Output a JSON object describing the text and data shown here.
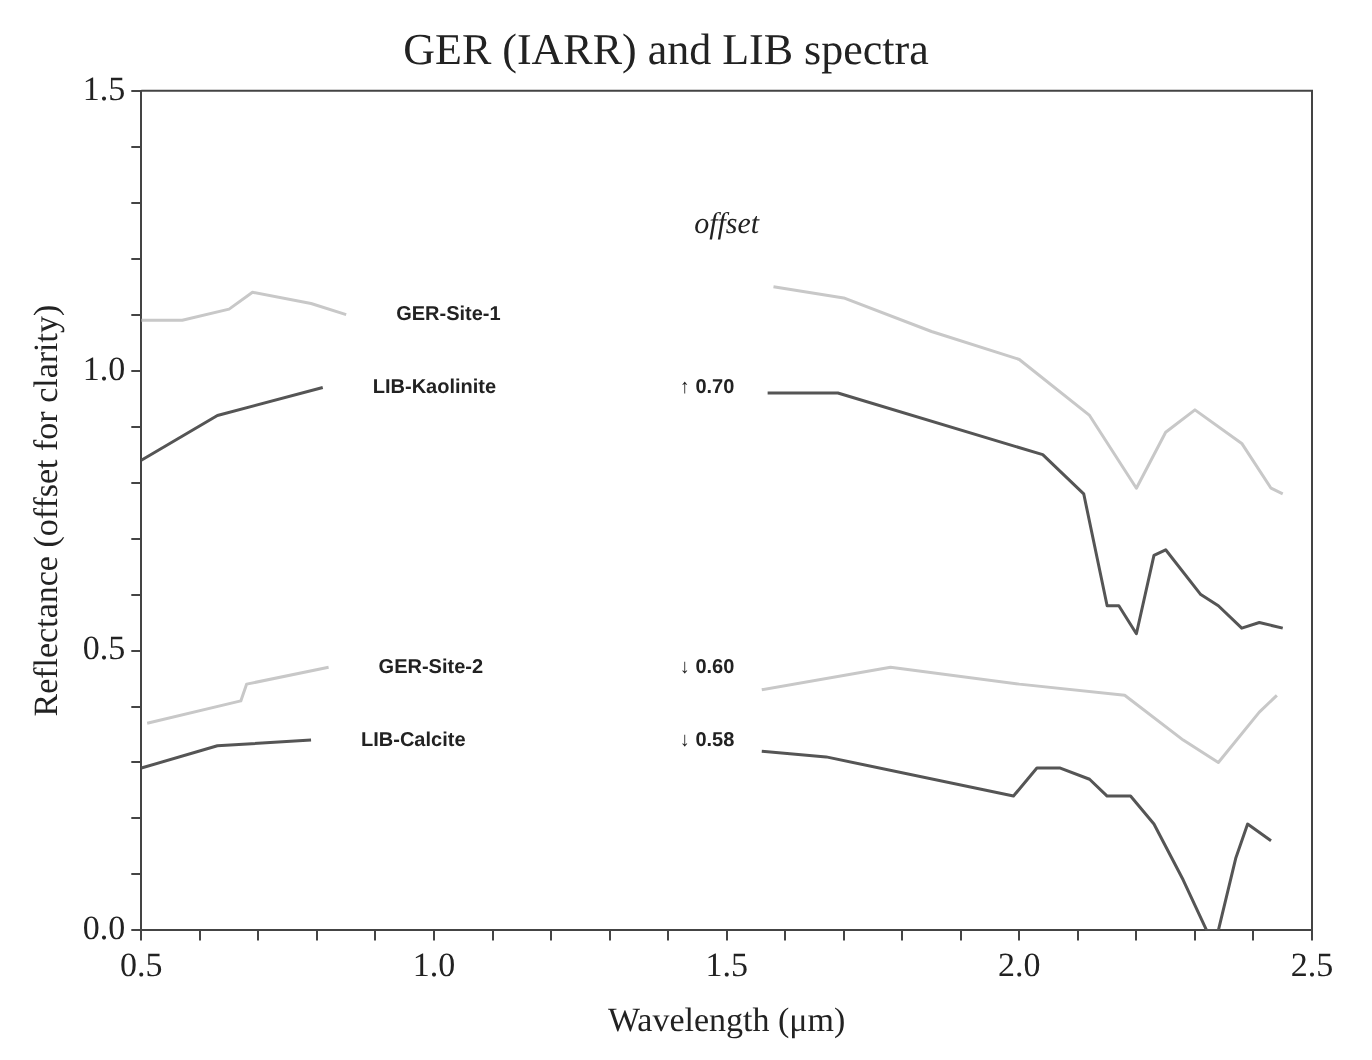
{
  "chart_data": {
    "type": "line",
    "title": "GER (IARR) and LIB spectra",
    "xlabel": "Wavelength (μm)",
    "ylabel": "Reflectance (offset for clarity)",
    "xlim": [
      0.5,
      2.5
    ],
    "ylim": [
      0.0,
      1.5
    ],
    "xticks": [
      {
        "value": 0.5,
        "label": "0.5"
      },
      {
        "value": 0.6,
        "label": null
      },
      {
        "value": 0.7,
        "label": null
      },
      {
        "value": 0.8,
        "label": null
      },
      {
        "value": 0.9,
        "label": null
      },
      {
        "value": 1.0,
        "label": "1.0"
      },
      {
        "value": 1.1,
        "label": null
      },
      {
        "value": 1.2,
        "label": null
      },
      {
        "value": 1.3,
        "label": null
      },
      {
        "value": 1.4,
        "label": null
      },
      {
        "value": 1.5,
        "label": "1.5"
      },
      {
        "value": 1.6,
        "label": null
      },
      {
        "value": 1.7,
        "label": null
      },
      {
        "value": 1.8,
        "label": null
      },
      {
        "value": 1.9,
        "label": null
      },
      {
        "value": 2.0,
        "label": "2.0"
      },
      {
        "value": 2.1,
        "label": null
      },
      {
        "value": 2.2,
        "label": null
      },
      {
        "value": 2.3,
        "label": null
      },
      {
        "value": 2.4,
        "label": null
      },
      {
        "value": 2.5,
        "label": "2.5"
      }
    ],
    "yticks": [
      {
        "value": 0.0,
        "label": "0.0"
      },
      {
        "value": 0.1,
        "label": null
      },
      {
        "value": 0.2,
        "label": null
      },
      {
        "value": 0.3,
        "label": null
      },
      {
        "value": 0.4,
        "label": null
      },
      {
        "value": 0.5,
        "label": "0.5"
      },
      {
        "value": 0.6,
        "label": null
      },
      {
        "value": 0.7,
        "label": null
      },
      {
        "value": 0.8,
        "label": null
      },
      {
        "value": 0.9,
        "label": null
      },
      {
        "value": 1.0,
        "label": "1.0"
      },
      {
        "value": 1.1,
        "label": null
      },
      {
        "value": 1.2,
        "label": null
      },
      {
        "value": 1.3,
        "label": null
      },
      {
        "value": 1.4,
        "label": null
      },
      {
        "value": 1.5,
        "label": "1.5"
      }
    ],
    "grid": false,
    "legend": false,
    "marker": "none",
    "line_style": "solid",
    "series": [
      {
        "name": "GER-Site-1",
        "color": "#c8c8c8",
        "x": [
          0.5,
          0.57,
          0.65,
          0.69,
          0.79,
          0.85,
          1.2,
          1.58,
          1.7,
          1.85,
          2.0,
          2.12,
          2.2,
          2.25,
          2.3,
          2.38,
          2.43,
          2.45
        ],
        "values": [
          1.09,
          1.09,
          1.11,
          1.14,
          1.12,
          1.1,
          null,
          1.15,
          1.13,
          1.07,
          1.02,
          0.92,
          0.79,
          0.89,
          0.93,
          0.87,
          0.79,
          0.78
        ]
      },
      {
        "name": "LIB-Kaolinite",
        "color": "#555555",
        "x": [
          0.5,
          0.63,
          0.81,
          1.2,
          1.57,
          1.69,
          2.04,
          2.11,
          2.15,
          2.17,
          2.2,
          2.23,
          2.25,
          2.31,
          2.34,
          2.38,
          2.41,
          2.45
        ],
        "values": [
          0.84,
          0.92,
          0.97,
          null,
          0.96,
          0.96,
          0.85,
          0.78,
          0.58,
          0.58,
          0.53,
          0.67,
          0.68,
          0.6,
          0.58,
          0.54,
          0.55,
          0.54
        ]
      },
      {
        "name": "GER-Site-2",
        "color": "#c8c8c8",
        "x": [
          0.51,
          0.67,
          0.68,
          0.82,
          1.2,
          1.56,
          1.78,
          2.0,
          2.18,
          2.28,
          2.34,
          2.41,
          2.44
        ],
        "values": [
          0.37,
          0.41,
          0.44,
          0.47,
          null,
          0.43,
          0.47,
          0.44,
          0.42,
          0.34,
          0.3,
          0.39,
          0.42
        ]
      },
      {
        "name": "LIB-Calcite",
        "color": "#555555",
        "x": [
          0.5,
          0.63,
          0.79,
          1.2,
          1.56,
          1.67,
          1.99,
          2.03,
          2.07,
          2.12,
          2.15,
          2.19,
          2.23,
          2.28,
          2.32,
          2.34,
          2.37,
          2.39,
          2.43
        ],
        "values": [
          0.29,
          0.33,
          0.34,
          null,
          0.32,
          0.31,
          0.24,
          0.29,
          0.29,
          0.27,
          0.24,
          0.24,
          0.19,
          0.09,
          0.0,
          0.0,
          0.13,
          0.19,
          0.16
        ]
      }
    ],
    "annotations": [
      "offset",
      "↑ 0.70",
      "↓ 0.60",
      "↓ 0.58"
    ]
  }
}
